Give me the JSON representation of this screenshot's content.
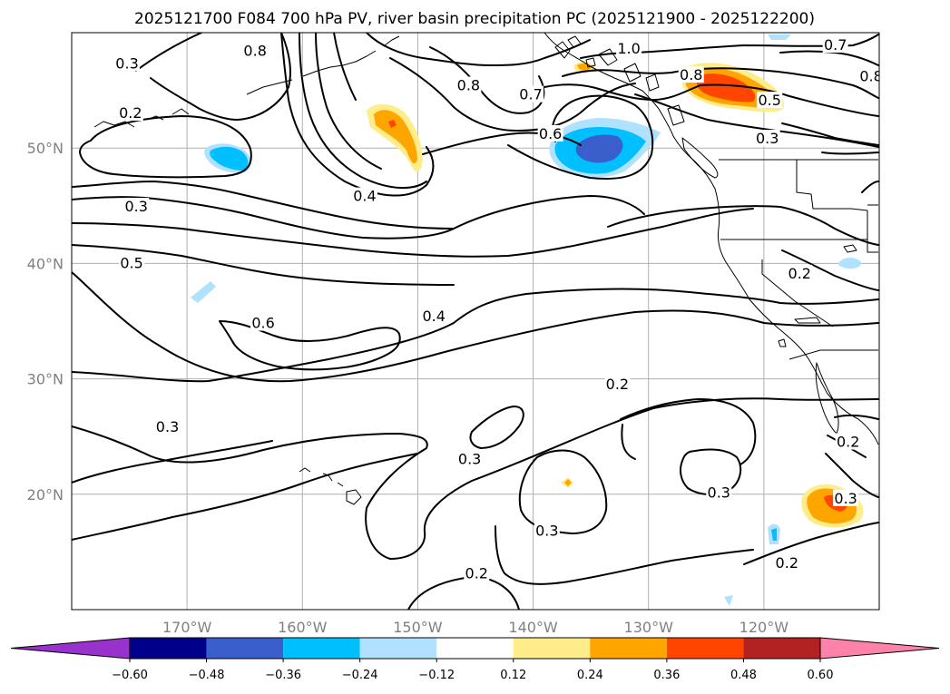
{
  "title": "2025121700 F084 700 hPa PV, river basin precipitation PC (2025121900 - 2025122200)",
  "map": {
    "lon_range": [
      -180,
      -110
    ],
    "lat_range": [
      10,
      60
    ],
    "lon_ticks": [
      {
        "value": -170,
        "label": "170°W"
      },
      {
        "value": -160,
        "label": "160°W"
      },
      {
        "value": -150,
        "label": "150°W"
      },
      {
        "value": -140,
        "label": "140°W"
      },
      {
        "value": -130,
        "label": "130°W"
      },
      {
        "value": -120,
        "label": "120°W"
      }
    ],
    "lat_ticks": [
      {
        "value": 20,
        "label": "20°N"
      },
      {
        "value": 30,
        "label": "30°N"
      },
      {
        "value": 40,
        "label": "40°N"
      },
      {
        "value": 50,
        "label": "50°N"
      }
    ],
    "gridlines": true
  },
  "colorbar": {
    "extend": "both",
    "boundaries": [
      "−0.60",
      "−0.48",
      "−0.36",
      "−0.24",
      "−0.12",
      "0.12",
      "0.24",
      "0.36",
      "0.48",
      "0.60"
    ],
    "colors": [
      "#9932cc",
      "#00008b",
      "#3a5fcd",
      "#00bfff",
      "#b0e2ff",
      "#ffffff",
      "#ffec8b",
      "#ffa500",
      "#ff4500",
      "#b22222",
      "#ff82ab"
    ]
  },
  "contour_labels": [
    {
      "text": "0.3",
      "lon": -175.2,
      "lat": 57.3
    },
    {
      "text": "0.8",
      "lon": -164.1,
      "lat": 58.4
    },
    {
      "text": "0.8",
      "lon": -145.6,
      "lat": 55.4
    },
    {
      "text": "0.2",
      "lon": -174.9,
      "lat": 53.0
    },
    {
      "text": "0.7",
      "lon": -140.2,
      "lat": 54.6
    },
    {
      "text": "1.0",
      "lon": -131.7,
      "lat": 58.6
    },
    {
      "text": "0.8",
      "lon": -126.3,
      "lat": 56.3
    },
    {
      "text": "0.7",
      "lon": -113.8,
      "lat": 58.9
    },
    {
      "text": "0.8",
      "lon": -110.7,
      "lat": 56.2
    },
    {
      "text": "0.5",
      "lon": -119.5,
      "lat": 54.1
    },
    {
      "text": "0.3",
      "lon": -119.7,
      "lat": 50.8
    },
    {
      "text": "0.6",
      "lon": -138.5,
      "lat": 51.2
    },
    {
      "text": "0.4",
      "lon": -154.6,
      "lat": 45.8
    },
    {
      "text": "0.3",
      "lon": -174.4,
      "lat": 44.9
    },
    {
      "text": "0.5",
      "lon": -174.8,
      "lat": 40.0
    },
    {
      "text": "0.2",
      "lon": -116.9,
      "lat": 39.1
    },
    {
      "text": "0.6",
      "lon": -163.4,
      "lat": 34.8
    },
    {
      "text": "0.4",
      "lon": -148.6,
      "lat": 35.4
    },
    {
      "text": "0.2",
      "lon": -132.7,
      "lat": 29.5
    },
    {
      "text": "0.3",
      "lon": -171.7,
      "lat": 25.8
    },
    {
      "text": "0.3",
      "lon": -145.5,
      "lat": 23.0
    },
    {
      "text": "0.2",
      "lon": -112.7,
      "lat": 24.5
    },
    {
      "text": "0.3",
      "lon": -112.9,
      "lat": 19.6
    },
    {
      "text": "0.3",
      "lon": -123.9,
      "lat": 20.1
    },
    {
      "text": "0.3",
      "lon": -138.8,
      "lat": 16.8
    },
    {
      "text": "0.2",
      "lon": -144.9,
      "lat": 13.1
    },
    {
      "text": "0.2",
      "lon": -118.0,
      "lat": 14.0
    }
  ]
}
